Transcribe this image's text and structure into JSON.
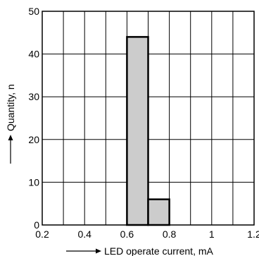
{
  "chart_data": {
    "type": "bar",
    "title": "",
    "xlabel": "LED operate current, mA",
    "ylabel": "Quantity, n",
    "xlim": [
      0.2,
      1.2
    ],
    "ylim": [
      0,
      50
    ],
    "x_ticks": [
      0.2,
      0.4,
      0.6,
      0.8,
      1,
      1.2
    ],
    "x_tick_labels": [
      "0.2",
      "0.4",
      "0.6",
      "0.8",
      "1",
      "1.2"
    ],
    "y_ticks": [
      0,
      10,
      20,
      30,
      40,
      50
    ],
    "y_tick_labels": [
      "0",
      "10",
      "20",
      "30",
      "40",
      "50"
    ],
    "x_grid_step": 0.1,
    "y_grid_step": 10,
    "grid": true,
    "bins": [
      {
        "x_start": 0.6,
        "x_end": 0.7,
        "value": 44
      },
      {
        "x_start": 0.7,
        "x_end": 0.8,
        "value": 6
      }
    ]
  },
  "colors": {
    "bar_fill": "#cccccc",
    "bar_stroke": "#000000",
    "grid": "#000000",
    "axis": "#000000"
  }
}
